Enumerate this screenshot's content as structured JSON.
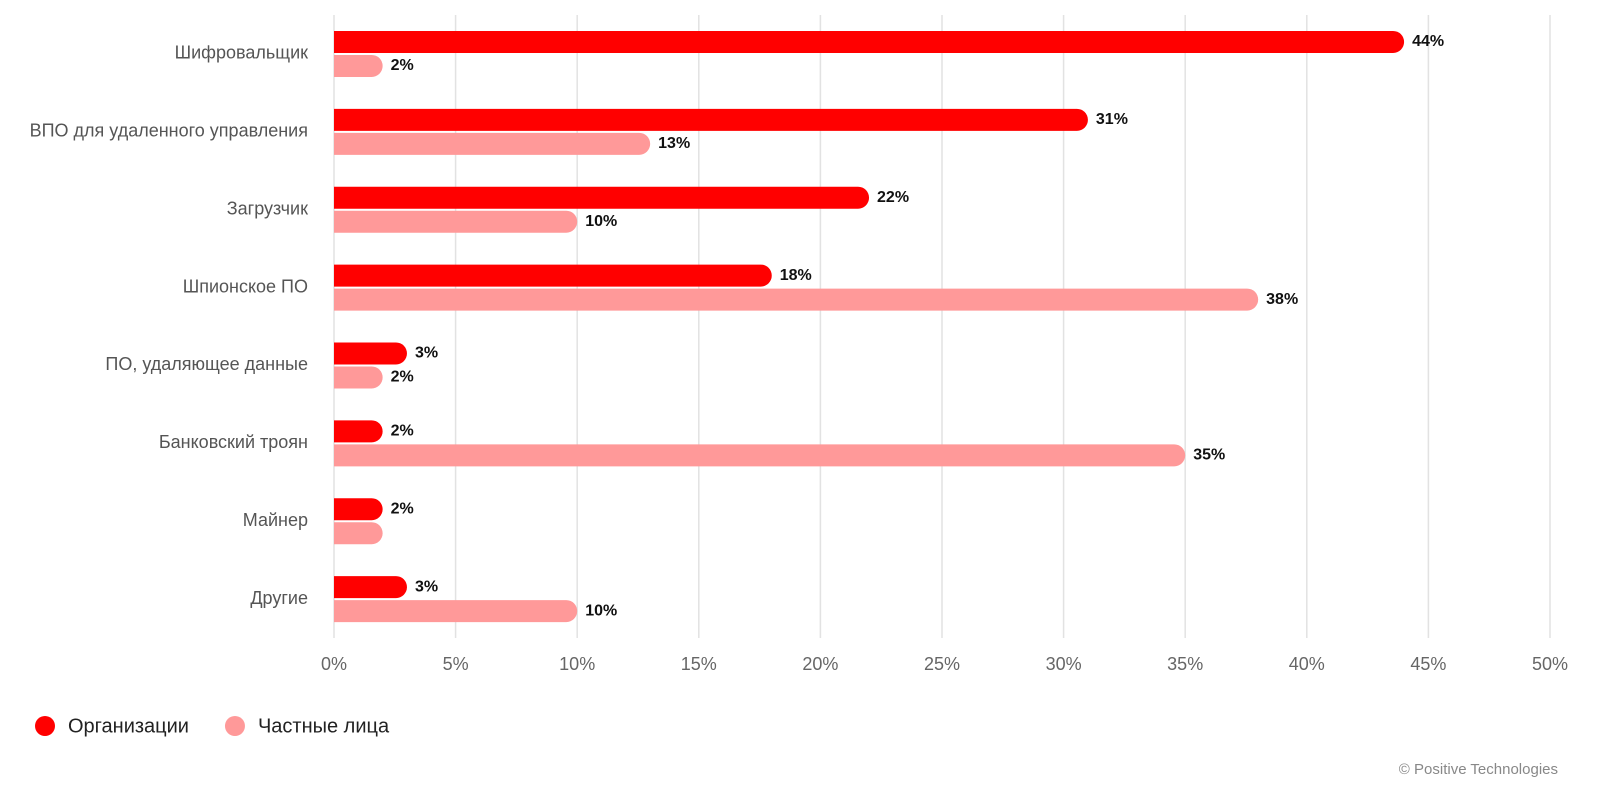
{
  "chart_data": {
    "type": "bar",
    "orientation": "horizontal",
    "categories": [
      "Шифровальщик",
      "ВПО для удаленного управления",
      "Загрузчик",
      "Шпионское ПО",
      "ПО, удаляющее данные",
      "Банковский троян",
      "Майнер",
      "Другие"
    ],
    "series": [
      {
        "name": "Организации",
        "color": "#ff0000",
        "values": [
          44,
          31,
          22,
          18,
          3,
          2,
          2,
          3
        ],
        "value_labels": [
          "44%",
          "31%",
          "22%",
          "18%",
          "3%",
          "2%",
          "2%",
          "3%"
        ]
      },
      {
        "name": "Частные лица",
        "color": "#ff9999",
        "values": [
          2,
          13,
          10,
          38,
          2,
          35,
          2,
          10
        ],
        "value_labels": [
          "2%",
          "13%",
          "10%",
          "38%",
          "2%",
          "35%",
          null,
          "10%"
        ]
      }
    ],
    "xlim": [
      0,
      50
    ],
    "xticks": [
      {
        "value": 0,
        "label": "0%"
      },
      {
        "value": 5,
        "label": "5%"
      },
      {
        "value": 10,
        "label": "10%"
      },
      {
        "value": 15,
        "label": "15%"
      },
      {
        "value": 20,
        "label": "20%"
      },
      {
        "value": 25,
        "label": "25%"
      },
      {
        "value": 30,
        "label": "30%"
      },
      {
        "value": 35,
        "label": "35%"
      },
      {
        "value": 40,
        "label": "40%"
      },
      {
        "value": 45,
        "label": "45%"
      },
      {
        "value": 50,
        "label": "50%"
      }
    ],
    "grid": true,
    "legend": "bottom-left",
    "source": "© Positive Technologies"
  }
}
